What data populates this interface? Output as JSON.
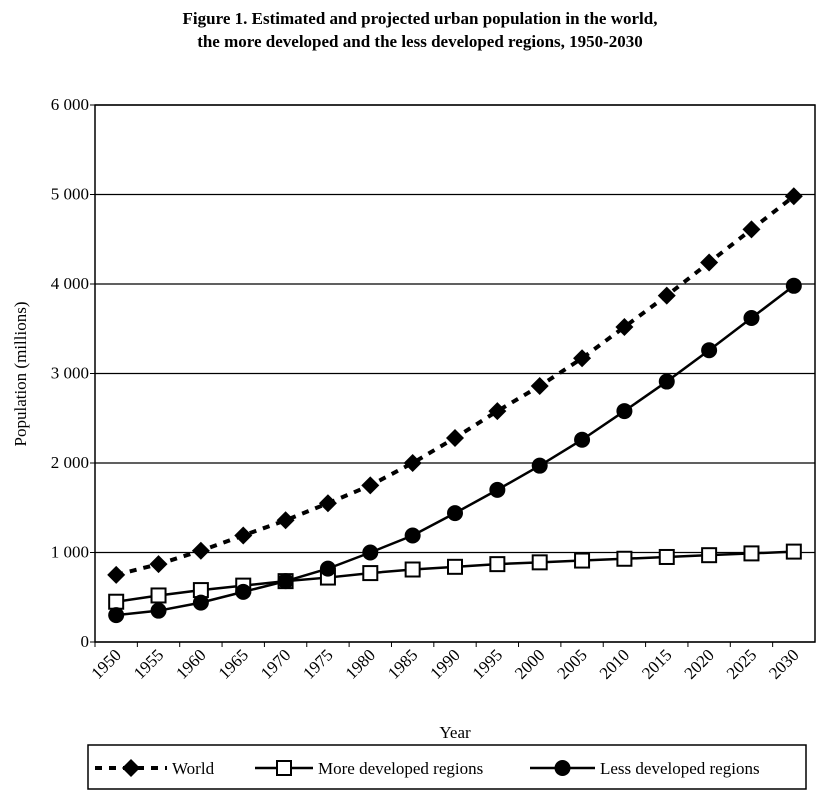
{
  "chart_data": {
    "type": "line",
    "title": [
      "Figure 1.  Estimated and projected urban population in the world,",
      "the more developed and the less developed regions, 1950-2030"
    ],
    "xlabel": "Year",
    "ylabel": "Population (millions)",
    "categories": [
      "1950",
      "1955",
      "1960",
      "1965",
      "1970",
      "1975",
      "1980",
      "1985",
      "1990",
      "1995",
      "2000",
      "2005",
      "2010",
      "2015",
      "2020",
      "2025",
      "2030"
    ],
    "series": [
      {
        "name": "World",
        "color": "#000000",
        "marker": "diamond",
        "dash": true,
        "values": [
          750,
          870,
          1020,
          1190,
          1360,
          1550,
          1750,
          2000,
          2280,
          2580,
          2860,
          3170,
          3520,
          3870,
          4240,
          4610,
          4980
        ]
      },
      {
        "name": "More developed regions",
        "color": "#000000",
        "marker": "square-open",
        "dash": false,
        "values": [
          450,
          520,
          580,
          630,
          680,
          720,
          770,
          810,
          840,
          870,
          890,
          910,
          930,
          950,
          970,
          990,
          1010
        ]
      },
      {
        "name": "Less developed regions",
        "color": "#000000",
        "marker": "circle",
        "dash": false,
        "values": [
          300,
          350,
          440,
          560,
          680,
          820,
          1000,
          1190,
          1440,
          1700,
          1970,
          2260,
          2580,
          2910,
          3260,
          3620,
          3980
        ]
      }
    ],
    "ylim": [
      0,
      6000
    ],
    "yticks": [
      0,
      {
        "value": 1000,
        "label": "1 000"
      },
      {
        "value": 2000,
        "label": "2 000"
      },
      {
        "value": 3000,
        "label": "3 000"
      },
      {
        "value": 4000,
        "label": "4 000"
      },
      {
        "value": 5000,
        "label": "5 000"
      },
      {
        "value": 6000,
        "label": "6 000"
      }
    ],
    "grid": true,
    "legend": "bottom"
  }
}
